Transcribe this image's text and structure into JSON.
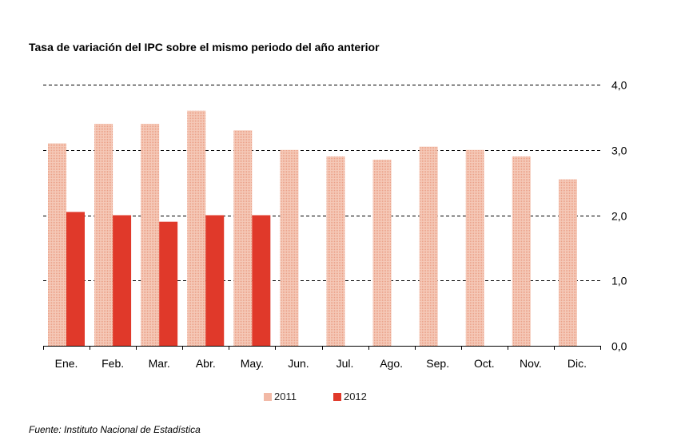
{
  "chart_data": {
    "type": "bar",
    "title": "Tasa de variación del IPC sobre el mismo periodo del año anterior",
    "xlabel": "",
    "ylabel": "",
    "categories": [
      "Ene.",
      "Feb.",
      "Mar.",
      "Abr.",
      "May.",
      "Jun.",
      "Jul.",
      "Ago.",
      "Sep.",
      "Oct.",
      "Nov.",
      "Dic."
    ],
    "series": [
      {
        "name": "2011",
        "color": "#f2b9a6",
        "values": [
          3.1,
          3.4,
          3.4,
          3.6,
          3.3,
          3.0,
          2.9,
          2.85,
          3.05,
          3.0,
          2.9,
          2.55
        ]
      },
      {
        "name": "2012",
        "color": "#e0392a",
        "values": [
          2.05,
          2.0,
          1.9,
          2.0,
          2.0,
          null,
          null,
          null,
          null,
          null,
          null,
          null
        ]
      }
    ],
    "ylim": [
      0,
      4
    ],
    "yticks": [
      "0,0",
      "1,0",
      "2,0",
      "3,0",
      "4,0"
    ],
    "y_axis_position": "right",
    "grid": true,
    "grid_style": "dashed",
    "legend_position": "bottom"
  },
  "source_note": "Fuente: Instituto Nacional de Estadística"
}
